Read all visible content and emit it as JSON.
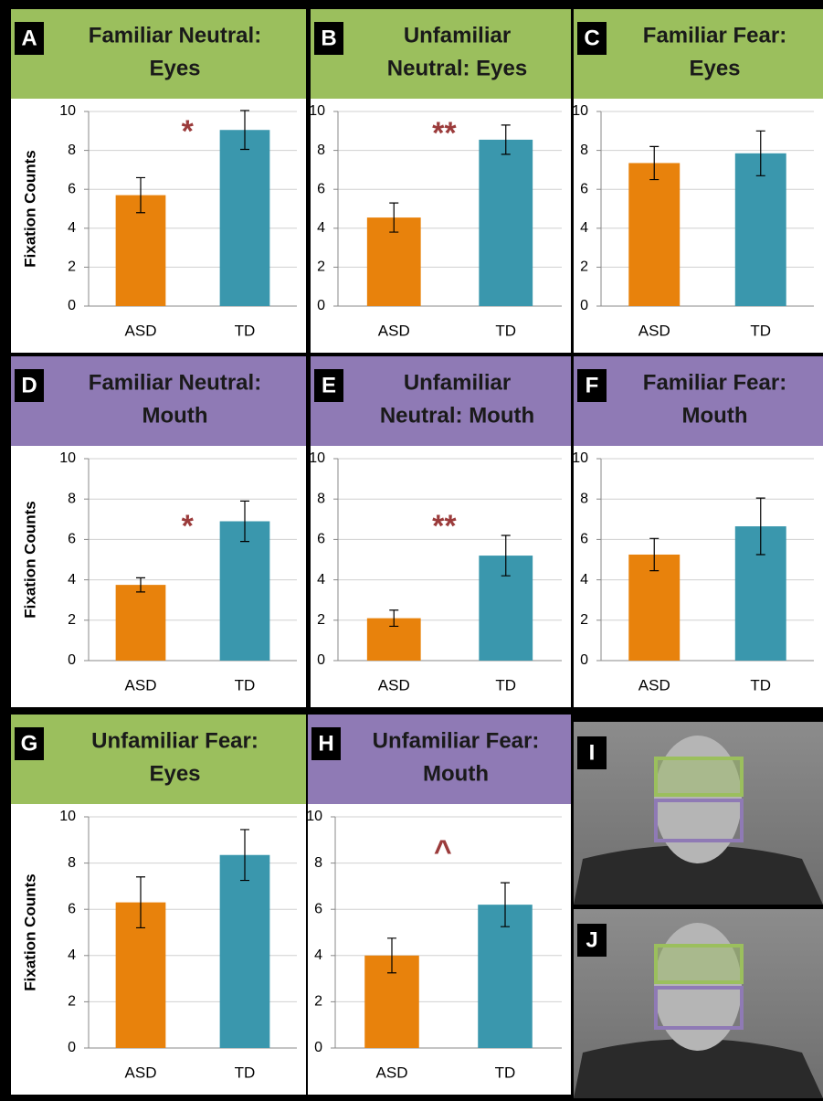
{
  "chart_data": [
    {
      "type": "bar",
      "panel_label": "A",
      "title": [
        "Familiar Neutral:",
        "Eyes"
      ],
      "header_color": "#9bbf5d",
      "ylabel": "Fixation Counts",
      "categories": [
        "ASD",
        "TD"
      ],
      "values": [
        5.7,
        9.05
      ],
      "errors": [
        0.9,
        1.0
      ],
      "colors": [
        "#e8820c",
        "#3a97ad"
      ],
      "annotation": "*",
      "ylim": [
        0,
        10
      ],
      "yticks": [
        0,
        2,
        4,
        6,
        8,
        10
      ],
      "grid": true
    },
    {
      "type": "bar",
      "panel_label": "B",
      "title": [
        "Unfamiliar",
        "Neutral: Eyes"
      ],
      "header_color": "#9bbf5d",
      "categories": [
        "ASD",
        "TD"
      ],
      "values": [
        4.55,
        8.55
      ],
      "errors": [
        0.75,
        0.75
      ],
      "colors": [
        "#e8820c",
        "#3a97ad"
      ],
      "annotation": "**",
      "ylim": [
        0,
        10
      ],
      "yticks": [
        0,
        2,
        4,
        6,
        8,
        10
      ],
      "grid": true
    },
    {
      "type": "bar",
      "panel_label": "C",
      "title": [
        "Familiar Fear:",
        "Eyes"
      ],
      "header_color": "#9bbf5d",
      "categories": [
        "ASD",
        "TD"
      ],
      "values": [
        7.35,
        7.85
      ],
      "errors": [
        0.85,
        1.15
      ],
      "colors": [
        "#e8820c",
        "#3a97ad"
      ],
      "ylim": [
        0,
        10
      ],
      "yticks": [
        0,
        2,
        4,
        6,
        8,
        10
      ],
      "grid": true
    },
    {
      "type": "bar",
      "panel_label": "D",
      "title": [
        "Familiar Neutral:",
        "Mouth"
      ],
      "header_color": "#8f7ab5",
      "ylabel": "Fixation Counts",
      "categories": [
        "ASD",
        "TD"
      ],
      "values": [
        3.75,
        6.9
      ],
      "errors": [
        0.35,
        1.0
      ],
      "colors": [
        "#e8820c",
        "#3a97ad"
      ],
      "annotation": "*",
      "ylim": [
        0,
        10
      ],
      "yticks": [
        0,
        2,
        4,
        6,
        8,
        10
      ],
      "grid": true
    },
    {
      "type": "bar",
      "panel_label": "E",
      "title": [
        "Unfamiliar",
        "Neutral: Mouth"
      ],
      "header_color": "#8f7ab5",
      "categories": [
        "ASD",
        "TD"
      ],
      "values": [
        2.1,
        5.2
      ],
      "errors": [
        0.4,
        1.0
      ],
      "colors": [
        "#e8820c",
        "#3a97ad"
      ],
      "annotation": "**",
      "ylim": [
        0,
        10
      ],
      "yticks": [
        0,
        2,
        4,
        6,
        8,
        10
      ],
      "grid": true
    },
    {
      "type": "bar",
      "panel_label": "F",
      "title": [
        "Familiar Fear:",
        "Mouth"
      ],
      "header_color": "#8f7ab5",
      "categories": [
        "ASD",
        "TD"
      ],
      "values": [
        5.25,
        6.65
      ],
      "errors": [
        0.8,
        1.4
      ],
      "colors": [
        "#e8820c",
        "#3a97ad"
      ],
      "ylim": [
        0,
        10
      ],
      "yticks": [
        0,
        2,
        4,
        6,
        8,
        10
      ],
      "grid": true
    },
    {
      "type": "bar",
      "panel_label": "G",
      "title": [
        "Unfamiliar Fear:",
        "Eyes"
      ],
      "header_color": "#9bbf5d",
      "ylabel": "Fixation Counts",
      "categories": [
        "ASD",
        "TD"
      ],
      "values": [
        6.3,
        8.35
      ],
      "errors": [
        1.1,
        1.1
      ],
      "colors": [
        "#e8820c",
        "#3a97ad"
      ],
      "ylim": [
        0,
        10
      ],
      "yticks": [
        0,
        2,
        4,
        6,
        8,
        10
      ],
      "grid": true
    },
    {
      "type": "bar",
      "panel_label": "H",
      "title": [
        "Unfamiliar Fear:",
        "Mouth"
      ],
      "header_color": "#8f7ab5",
      "categories": [
        "ASD",
        "TD"
      ],
      "values": [
        4.0,
        6.2
      ],
      "errors": [
        0.75,
        0.95
      ],
      "colors": [
        "#e8820c",
        "#3a97ad"
      ],
      "annotation": "^",
      "ylim": [
        0,
        10
      ],
      "yticks": [
        0,
        2,
        4,
        6,
        8,
        10
      ],
      "grid": true
    }
  ],
  "photo_panels": [
    {
      "label": "I"
    },
    {
      "label": "J"
    }
  ]
}
